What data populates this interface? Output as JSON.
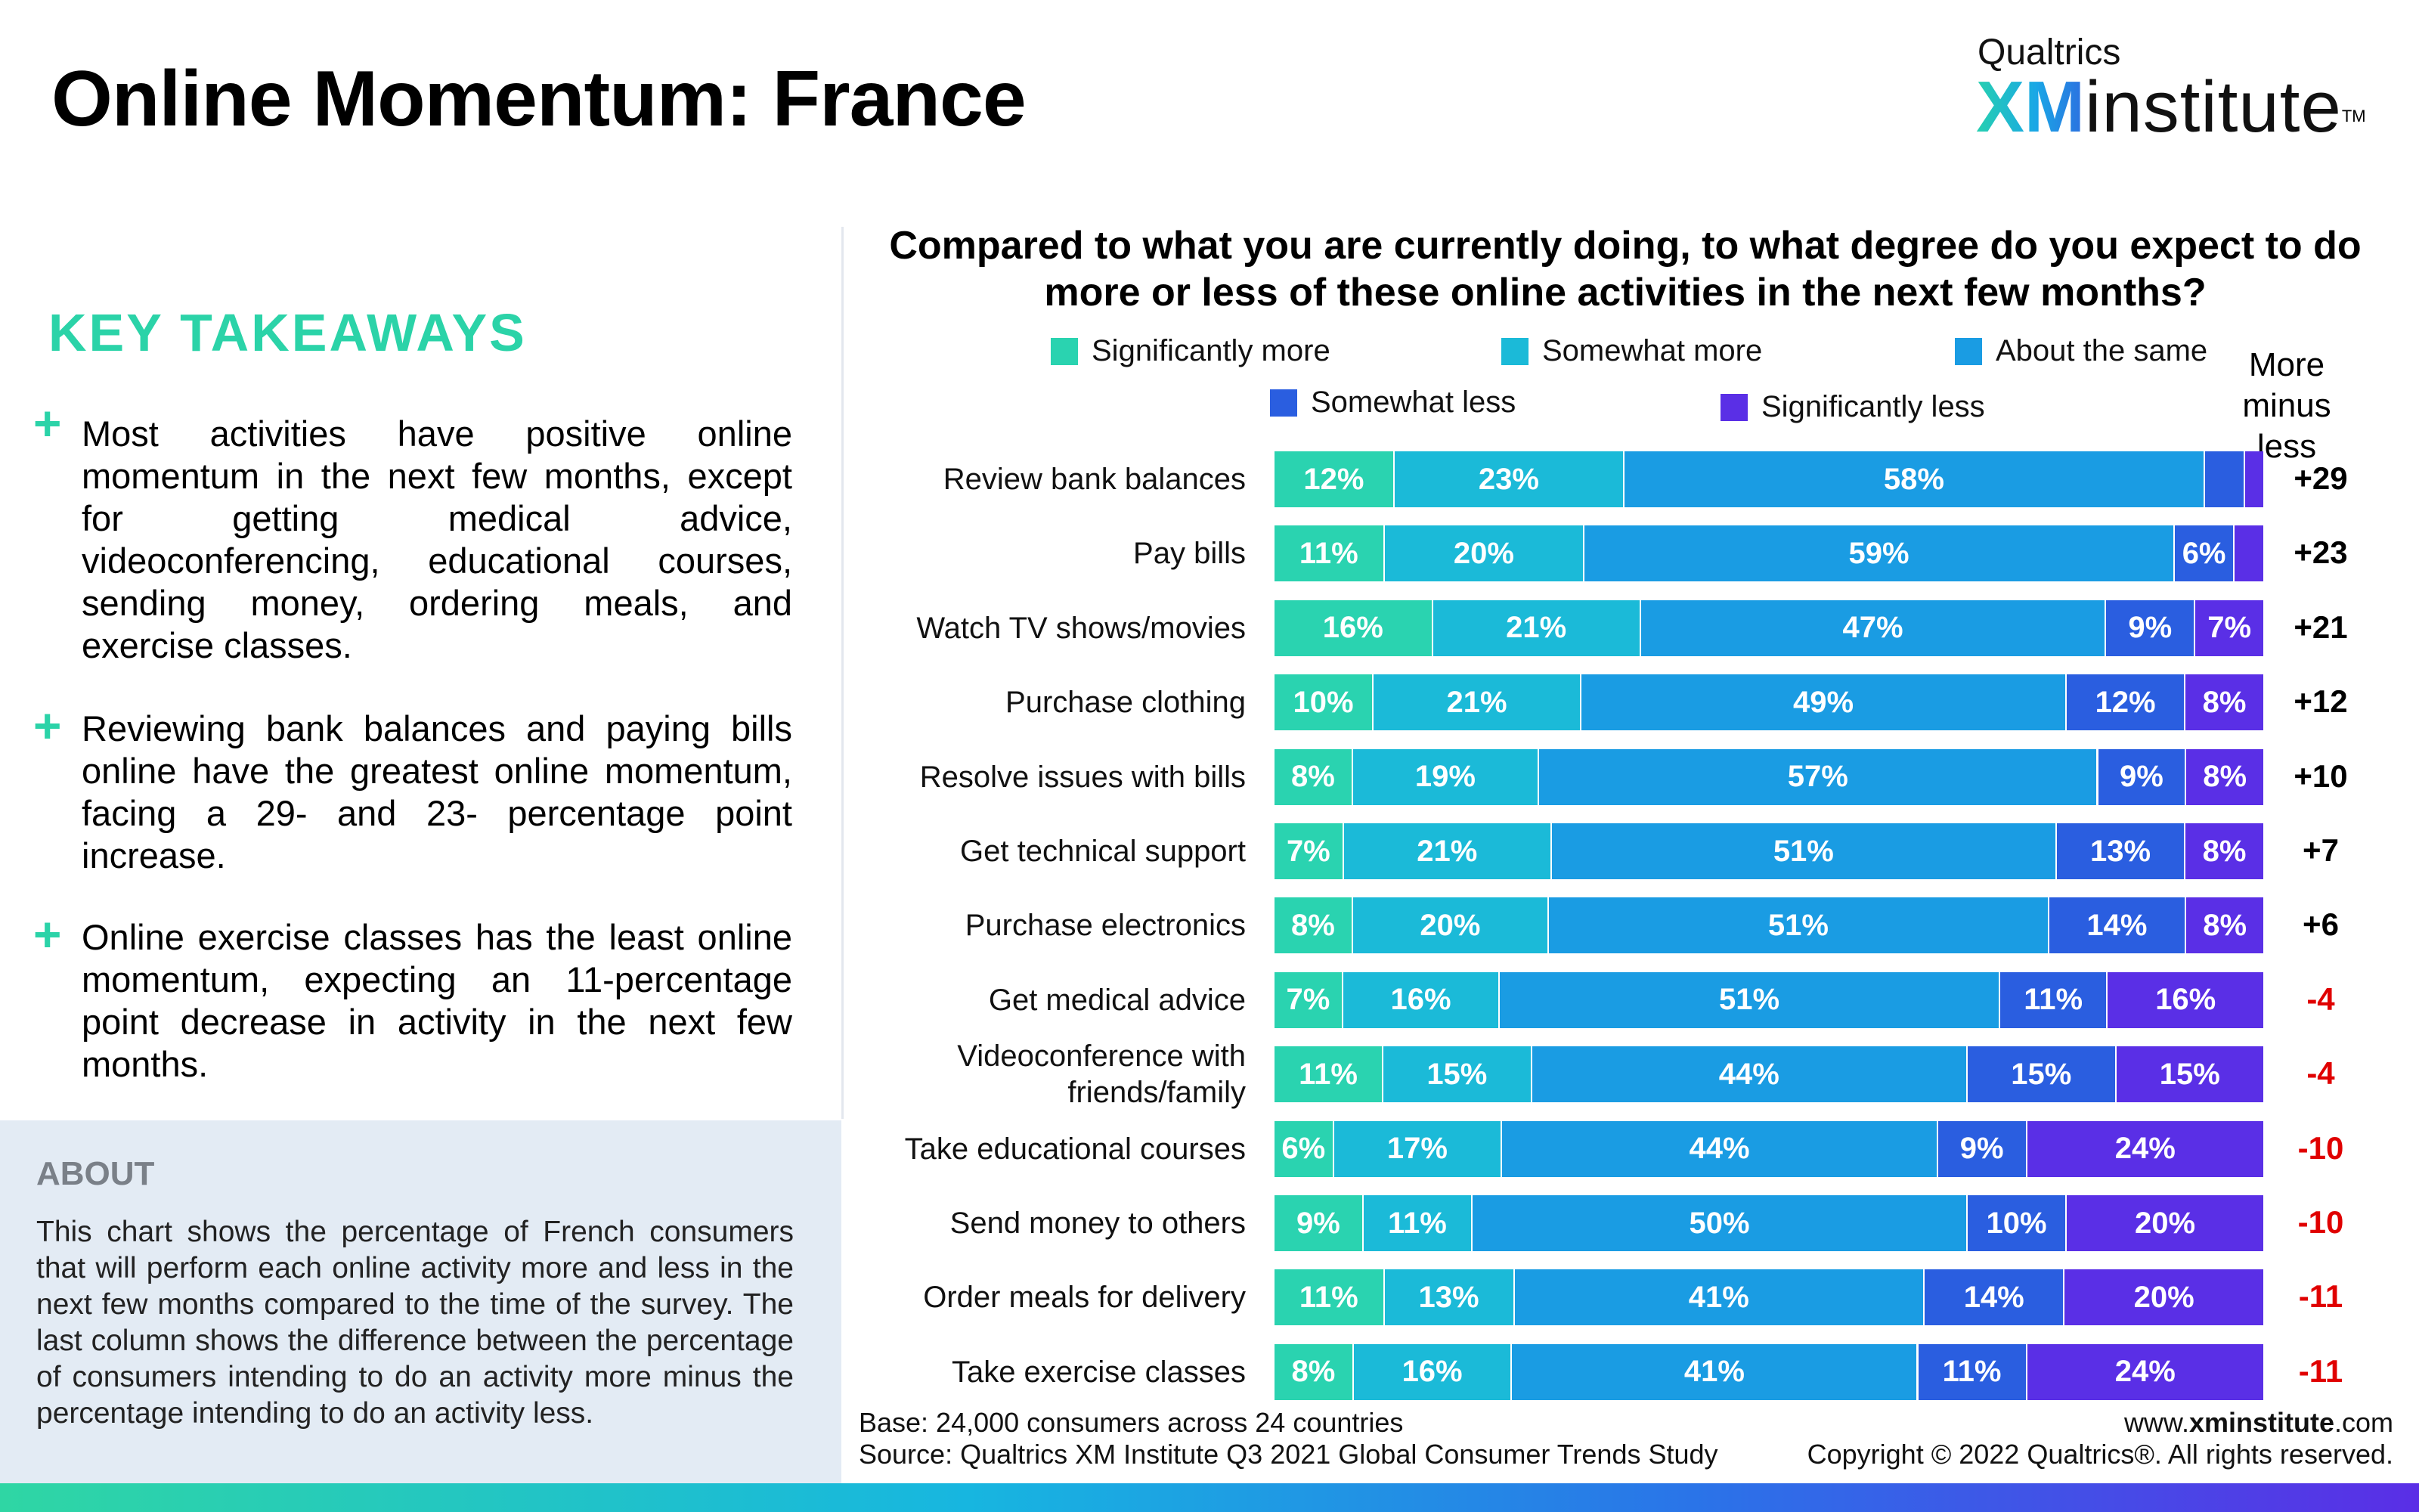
{
  "page": {
    "title": "Online Momentum: France",
    "logo": {
      "top": "Qualtrics",
      "brand": "XM",
      "word": "institute",
      "tm": "TM"
    },
    "takeaways_heading": "KEY TAKEAWAYS",
    "takeaways": [
      "Most activities have positive online momentum in the next few months, except for getting medical advice, videoconferencing, educational courses, sending money, ordering meals, and exercise classes.",
      "Reviewing bank balances and paying bills online have the greatest online momentum, facing a 29- and 23- percentage point increase.",
      "Online exercise classes has the least online momentum, expecting an 11-percentage point decrease in activity in the next few months."
    ],
    "about_heading": "ABOUT",
    "about_text": "This chart shows the percentage of French consumers that will perform each online activity more and less in the next few months compared to the time of the survey. The last column shows the difference between the percentage of consumers intending to do an activity more minus the percentage intending to do an activity less.",
    "base_note": "Base: 24,000 consumers across 24 countries",
    "source_note": "Source: Qualtrics XM Institute Q3 2021 Global Consumer Trends Study",
    "site_prefix": "www.",
    "site_bold": "xminstitute",
    "site_suffix": ".com",
    "copyright": "Copyright © 2022 Qualtrics®. All rights reserved."
  },
  "colors": {
    "Significantly more": "#2ad3b0",
    "Somewhat more": "#1bbad8",
    "About the same": "#1a9ce3",
    "Somewhat less": "#2a5ee0",
    "Significantly less": "#5a2fe6",
    "accent": "#2bd3a8",
    "negative": "#e00000"
  },
  "chart_data": {
    "type": "bar",
    "orientation": "horizontal",
    "stacked": true,
    "title": "Compared to what you are currently doing, to what degree do you expect to do more or less of these online activities in the next few months?",
    "net_header": "More minus less",
    "legend_position": "top",
    "categories": [
      "Review bank balances",
      "Pay bills",
      "Watch TV shows/movies",
      "Purchase clothing",
      "Resolve issues with bills",
      "Get technical support",
      "Purchase electronics",
      "Get medical advice",
      "Videoconference with friends/family",
      "Take educational courses",
      "Send money to others",
      "Order meals for delivery",
      "Take exercise classes"
    ],
    "series": [
      {
        "name": "Significantly more",
        "values": [
          12,
          11,
          16,
          10,
          8,
          7,
          8,
          7,
          11,
          6,
          9,
          11,
          8
        ]
      },
      {
        "name": "Somewhat more",
        "values": [
          23,
          20,
          21,
          21,
          19,
          21,
          20,
          16,
          15,
          17,
          11,
          13,
          16
        ]
      },
      {
        "name": "About the same",
        "values": [
          58,
          59,
          47,
          49,
          57,
          51,
          51,
          51,
          44,
          44,
          50,
          41,
          41
        ]
      },
      {
        "name": "Somewhat less",
        "values": [
          4,
          6,
          9,
          12,
          9,
          13,
          14,
          11,
          15,
          9,
          10,
          14,
          11
        ]
      },
      {
        "name": "Significantly less",
        "values": [
          2,
          3,
          7,
          8,
          8,
          8,
          8,
          16,
          15,
          24,
          20,
          20,
          24
        ]
      }
    ],
    "labels_hidden_below": 5,
    "net": [
      "+29",
      "+23",
      "+21",
      "+12",
      "+10",
      "+7",
      "+6",
      "-4",
      "-4",
      "-10",
      "-10",
      "-11",
      "-11"
    ]
  }
}
